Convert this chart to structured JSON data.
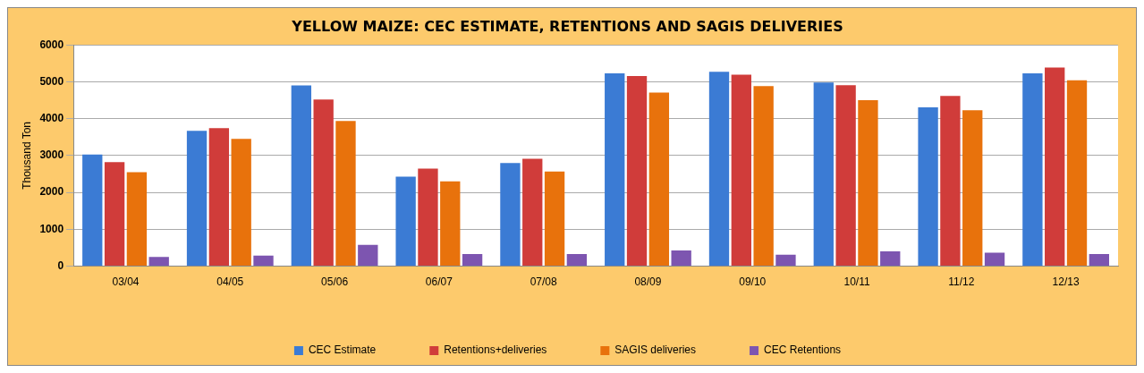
{
  "chart_data": {
    "type": "bar",
    "title": "YELLOW MAIZE: CEC ESTIMATE, RETENTIONS AND SAGIS DELIVERIES",
    "ylabel": "Thousand Ton",
    "categories": [
      "03/04",
      "04/05",
      "05/06",
      "06/07",
      "07/08",
      "08/09",
      "09/10",
      "10/11",
      "11/12",
      "12/13"
    ],
    "series": [
      {
        "name": "CEC Estimate",
        "color": "#3b7bd4",
        "values": [
          3030,
          3670,
          4900,
          2430,
          2800,
          5230,
          5270,
          4980,
          4305,
          5230
        ]
      },
      {
        "name": "Retentions+deliveries",
        "color": "#d03c3a",
        "values": [
          2820,
          3745,
          4520,
          2645,
          2915,
          5155,
          5195,
          4905,
          4615,
          5385
        ]
      },
      {
        "name": "SAGIS deliveries",
        "color": "#e8720c",
        "values": [
          2550,
          3455,
          3940,
          2300,
          2570,
          4710,
          4885,
          4500,
          4230,
          5040
        ]
      },
      {
        "name": "CEC Retentions",
        "color": "#7d55b0",
        "values": [
          250,
          290,
          580,
          330,
          330,
          425,
          310,
          405,
          365,
          330
        ]
      }
    ],
    "ylim": [
      0,
      6000
    ],
    "yticks": [
      0,
      1000,
      2000,
      3000,
      4000,
      5000,
      6000
    ],
    "grid": "y",
    "legend": "bottom"
  }
}
